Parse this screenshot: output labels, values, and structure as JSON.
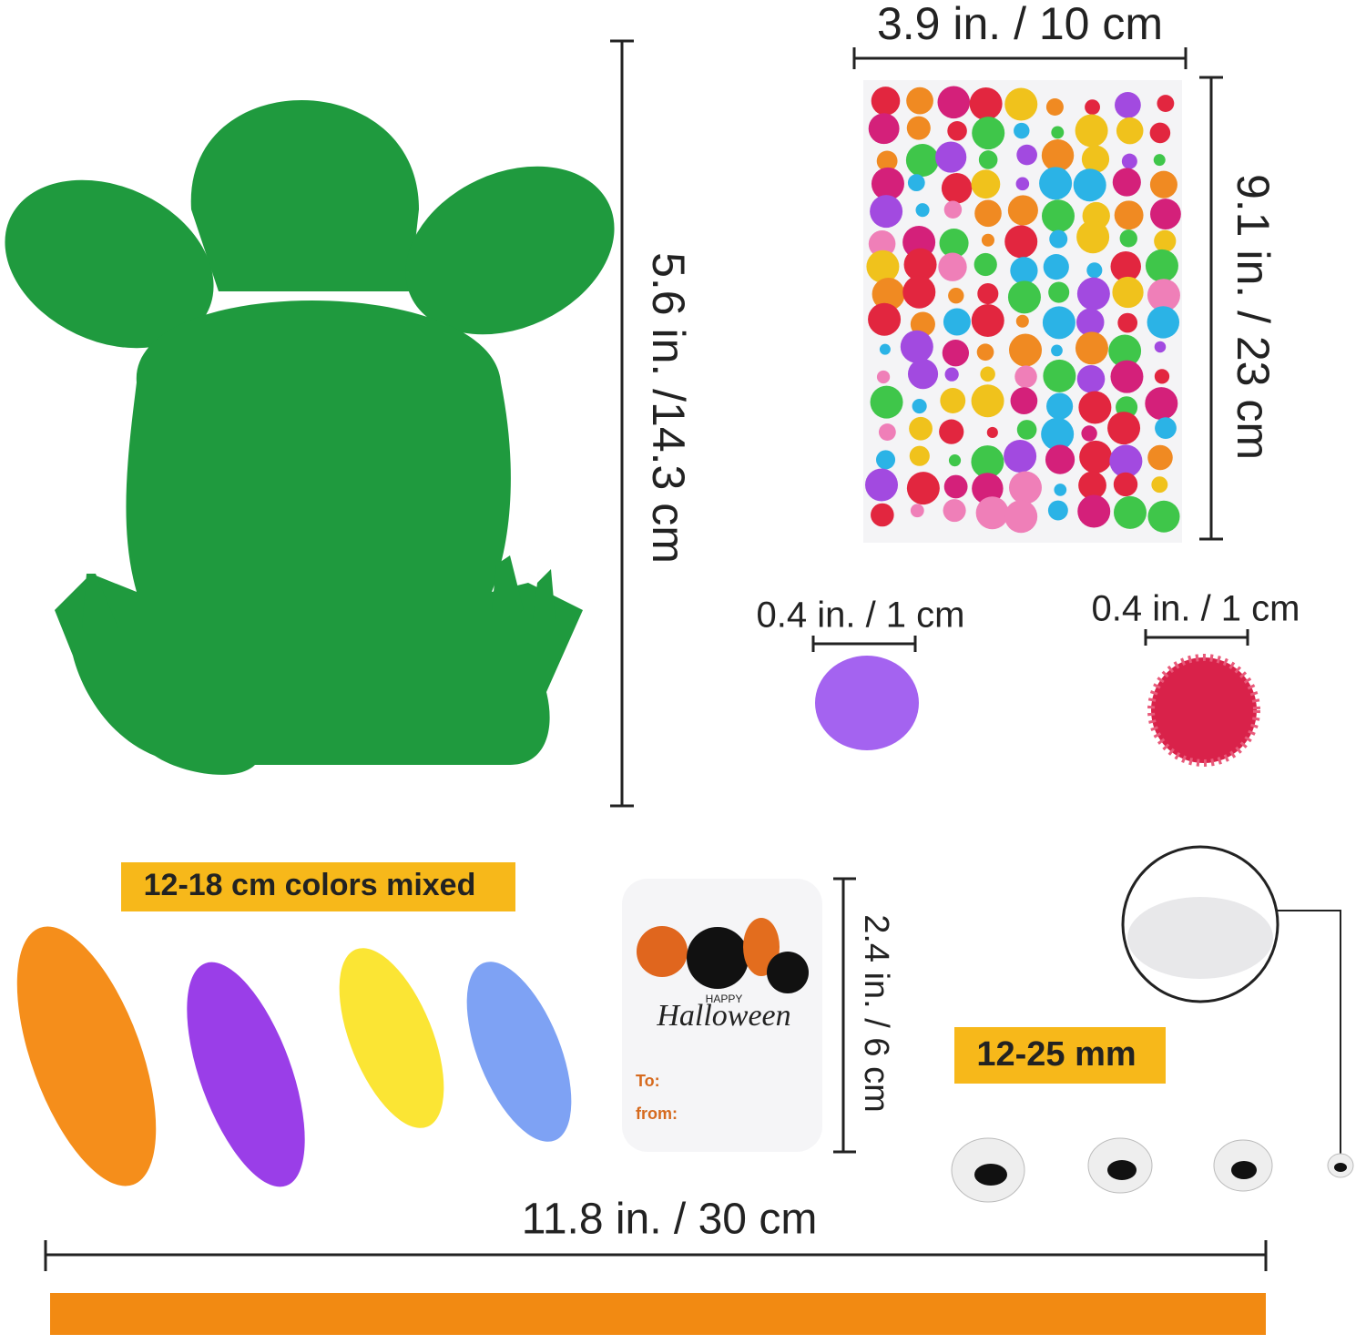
{
  "dimensions": {
    "sheet_width": "3.9 in. / 10 cm",
    "sheet_height": "9.1 in. / 23 cm",
    "frog_height": "5.6 in. /14.3 cm",
    "pompom_purple": "0.4 in. / 1 cm",
    "pompom_red": "0.4 in. / 1 cm",
    "tag_height": "2.4 in. / 6 cm",
    "ribbon_length": "11.8 in. / 30 cm"
  },
  "labels": {
    "feathers": "12-18 cm colors mixed",
    "eyes": "12-25 mm"
  },
  "tag": {
    "happy": "HAPPY",
    "halloween": "Halloween",
    "to": "To:",
    "from": "from:"
  }
}
